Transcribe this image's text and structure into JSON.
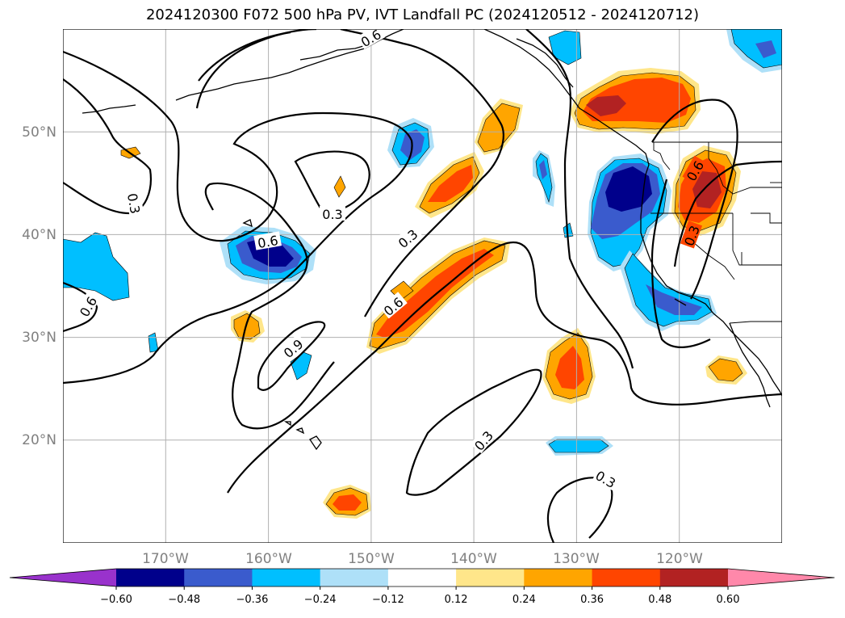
{
  "title": "2024120300 F072 500 hPa PV, IVT Landfall PC (2024120512 - 2024120712)",
  "map": {
    "projection": "PlateCarree",
    "lon_range": [
      -180,
      -110
    ],
    "lat_range": [
      10,
      60
    ],
    "lon_ticks": [
      "170°W",
      "160°W",
      "150°W",
      "140°W",
      "130°W",
      "120°W"
    ],
    "lat_ticks": [
      "50°N",
      "40°N",
      "30°N",
      "20°N"
    ],
    "gridlines": true
  },
  "contour_labels": [
    "0.6",
    "0.3",
    "0.3",
    "0.6",
    "0.6",
    "0.3",
    "0.9",
    "0.6",
    "0.3",
    "0.3",
    "0.6",
    "0.3",
    "0.3"
  ],
  "colorbar": {
    "extend": "both",
    "colors": [
      "#9932cc",
      "#00008b",
      "#3a5bcd",
      "#00bfff",
      "#aee0f8",
      "#ffffff",
      "#ffe68a",
      "#ffa500",
      "#ff4500",
      "#b22222",
      "#ff88aa"
    ],
    "tick_labels": [
      "−0.60",
      "−0.48",
      "−0.36",
      "−0.24",
      "−0.12",
      "0.12",
      "0.24",
      "0.36",
      "0.48",
      "0.60"
    ]
  }
}
